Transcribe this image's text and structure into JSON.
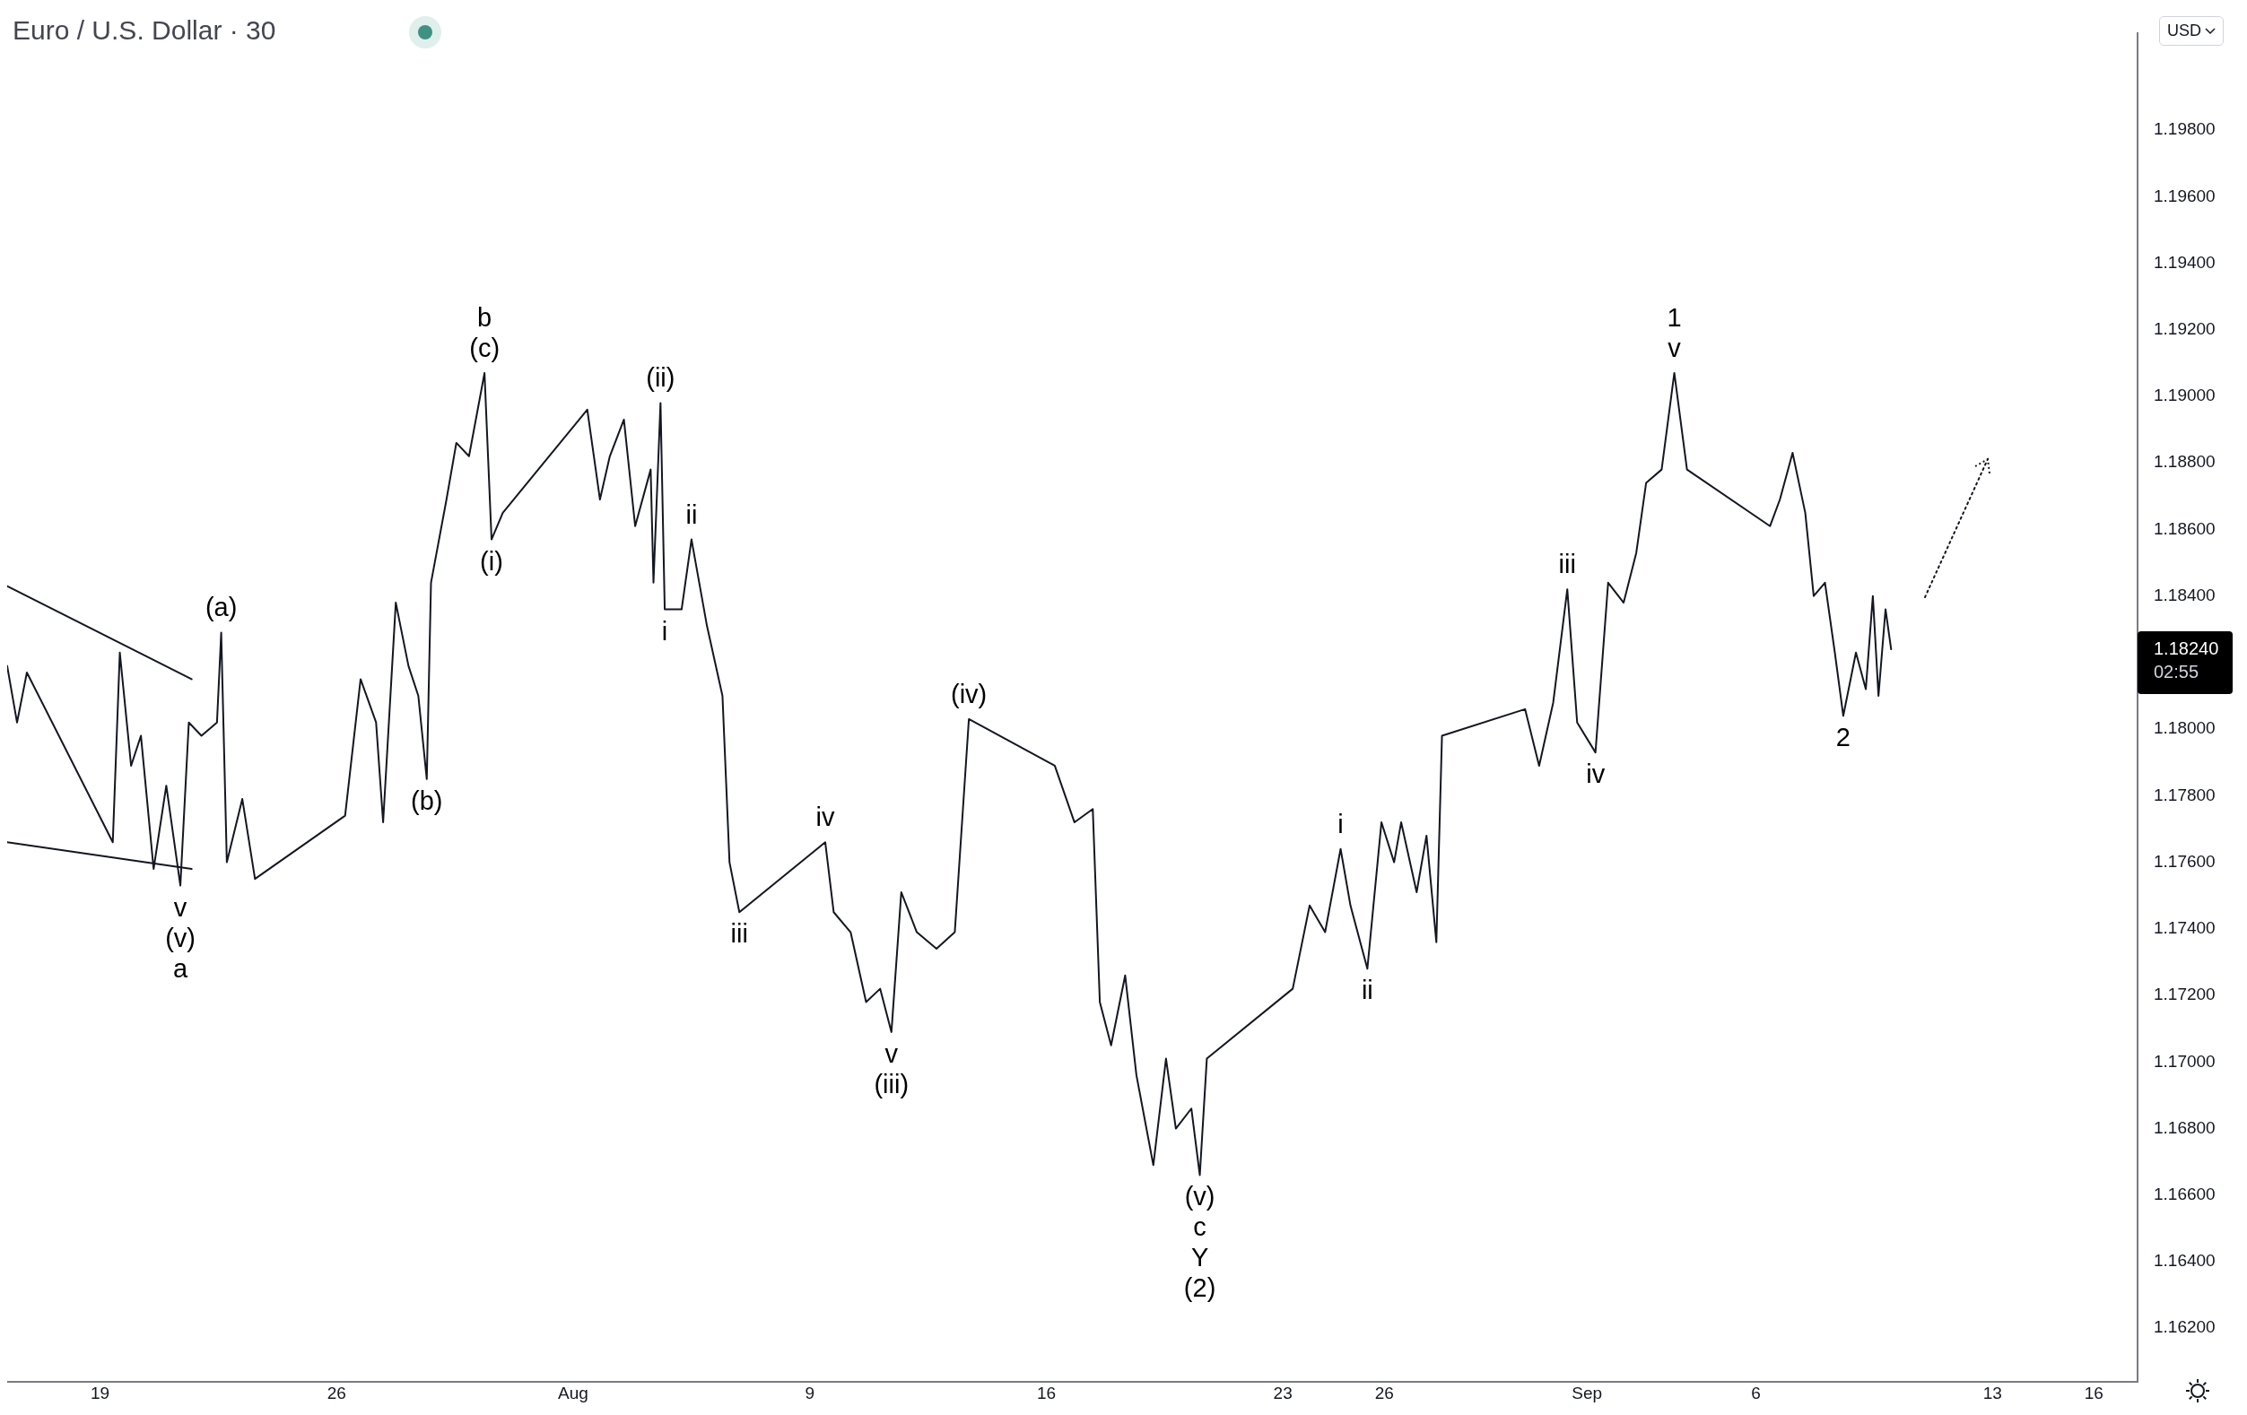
{
  "chart_data": {
    "type": "line",
    "title": "Euro / U.S. Dollar · 30",
    "ylabel": "USD",
    "xlim": [
      "--07-16T06:00",
      "--09-17T07:00"
    ],
    "xticks": [
      {
        "value": "--07-19",
        "label": "19"
      },
      {
        "value": "--07-26",
        "label": "26"
      },
      {
        "value": "--08-02",
        "label": "Aug"
      },
      {
        "value": "--08-09",
        "label": "9"
      },
      {
        "value": "--08-16",
        "label": "16"
      },
      {
        "value": "--08-23",
        "label": "23"
      },
      {
        "value": "--08-26",
        "label": "26"
      },
      {
        "value": "--09-01",
        "label": "Sep"
      },
      {
        "value": "--09-06",
        "label": "6"
      },
      {
        "value": "--09-13",
        "label": "13"
      },
      {
        "value": "--09-16",
        "label": "16"
      }
    ],
    "ylim": [
      1.1604,
      1.2009
    ],
    "yticks": [
      {
        "value": 1.162,
        "label": "1.16200"
      },
      {
        "value": 1.164,
        "label": "1.16400"
      },
      {
        "value": 1.166,
        "label": "1.16600"
      },
      {
        "value": 1.168,
        "label": "1.16800"
      },
      {
        "value": 1.17,
        "label": "1.17000"
      },
      {
        "value": 1.172,
        "label": "1.17200"
      },
      {
        "value": 1.174,
        "label": "1.17400"
      },
      {
        "value": 1.176,
        "label": "1.17600"
      },
      {
        "value": 1.178,
        "label": "1.17800"
      },
      {
        "value": 1.18,
        "label": "1.18000"
      },
      {
        "value": 1.184,
        "label": "1.18400"
      },
      {
        "value": 1.186,
        "label": "1.18600"
      },
      {
        "value": 1.188,
        "label": "1.18800"
      },
      {
        "value": 1.19,
        "label": "1.19000"
      },
      {
        "value": 1.192,
        "label": "1.19200"
      },
      {
        "value": 1.194,
        "label": "1.19400"
      },
      {
        "value": 1.196,
        "label": "1.19600"
      },
      {
        "value": 1.198,
        "label": "1.19800"
      }
    ],
    "grid": false,
    "legend": false,
    "marker": "none",
    "series": [
      {
        "color": "#131722",
        "x": [
          "--07-16T06:00",
          "--07-16T13:00",
          "--07-16T20:00",
          "--07-19T09:00",
          "--07-19T14:00",
          "--07-19T22:00",
          "--07-20T05:00",
          "--07-20T14:00",
          "--07-20T23:00",
          "--07-21T09:00",
          "--07-21T15:00",
          "--07-22T00:00",
          "--07-22T11:00",
          "--07-22T14:00",
          "--07-22T18:00",
          "--07-23T05:00",
          "--07-23T14:00",
          "--07-26T06:00",
          "--07-26T17:00",
          "--07-27T04:00",
          "--07-27T09:00",
          "--07-27T18:00",
          "--07-28T03:00",
          "--07-28T10:00",
          "--07-28T16:00",
          "--07-28T19:00",
          "--07-29T06:00",
          "--07-29T13:00",
          "--07-29T22:00",
          "--07-30T09:00",
          "--07-30T14:00",
          "--07-30T22:00",
          "--08-02T10:00",
          "--08-02T19:00",
          "--08-03T02:00",
          "--08-03T12:00",
          "--08-03T20:00",
          "--08-04T07:00",
          "--08-04T09:00",
          "--08-04T14:00",
          "--08-04T17:00",
          "--08-05T05:00",
          "--08-05T12:00",
          "--08-05T23:00",
          "--08-06T10:00",
          "--08-06T15:00",
          "--08-06T22:00",
          "--08-09T11:00",
          "--08-09T17:00",
          "--08-10T05:00",
          "--08-10T16:00",
          "--08-11T02:00",
          "--08-11T10:00",
          "--08-11T17:00",
          "--08-12T04:00",
          "--08-12T18:00",
          "--08-13T07:00",
          "--08-13T17:00",
          "--08-16T06:00",
          "--08-16T20:00",
          "--08-17T09:00",
          "--08-17T14:00",
          "--08-17T22:00",
          "--08-18T08:00",
          "--08-18T16:00",
          "--08-19T04:00",
          "--08-19T13:00",
          "--08-19T20:00",
          "--08-20T07:00",
          "--08-20T13:00",
          "--08-20T18:00",
          "--08-23T07:00",
          "--08-23T19:00",
          "--08-24T06:00",
          "--08-24T17:00",
          "--08-25T00:00",
          "--08-25T12:00",
          "--08-25T22:00",
          "--08-26T07:00",
          "--08-26T12:00",
          "--08-26T23:00",
          "--08-27T06:00",
          "--08-27T13:00",
          "--08-27T17:00",
          "--08-30T04:00",
          "--08-30T14:00",
          "--08-31T00:00",
          "--08-31T10:00",
          "--08-31T17:00",
          "--09-01T06:00",
          "--09-01T15:00",
          "--09-02T02:00",
          "--09-02T11:00",
          "--09-02T18:00",
          "--09-03T05:00",
          "--09-03T14:00",
          "--09-03T23:00",
          "--09-06T10:00",
          "--09-06T17:00",
          "--09-07T02:00",
          "--09-07T11:00",
          "--09-07T17:00",
          "--09-08T01:00",
          "--09-08T08:00",
          "--09-08T14:00",
          "--09-08T23:00",
          "--09-09T06:00",
          "--09-09T11:00",
          "--09-09T15:00",
          "--09-09T20:00",
          "--09-10T00:00"
        ],
        "values": [
          1.1819,
          1.1802,
          1.1817,
          1.1766,
          1.1823,
          1.1789,
          1.1798,
          1.1758,
          1.1783,
          1.1753,
          1.1802,
          1.1798,
          1.1802,
          1.1829,
          1.176,
          1.1779,
          1.1755,
          1.1774,
          1.1815,
          1.1802,
          1.1772,
          1.1838,
          1.1819,
          1.181,
          1.1785,
          1.1844,
          1.1869,
          1.1886,
          1.1882,
          1.1907,
          1.1857,
          1.1865,
          1.1896,
          1.1869,
          1.1882,
          1.1893,
          1.1861,
          1.1878,
          1.1844,
          1.1898,
          1.1836,
          1.1836,
          1.1857,
          1.1831,
          1.181,
          1.176,
          1.1745,
          1.1766,
          1.1745,
          1.1739,
          1.1718,
          1.1722,
          1.1709,
          1.1751,
          1.1739,
          1.1734,
          1.1739,
          1.1803,
          1.1789,
          1.1772,
          1.1776,
          1.1718,
          1.1705,
          1.1726,
          1.1696,
          1.1669,
          1.1701,
          1.168,
          1.1686,
          1.1666,
          1.1701,
          1.1722,
          1.1747,
          1.1739,
          1.1764,
          1.1747,
          1.1728,
          1.1772,
          1.176,
          1.1772,
          1.1751,
          1.1768,
          1.1736,
          1.1798,
          1.1806,
          1.1789,
          1.1808,
          1.1842,
          1.1802,
          1.1793,
          1.1844,
          1.1838,
          1.1853,
          1.1874,
          1.1878,
          1.1907,
          1.1878,
          1.1861,
          1.1869,
          1.1883,
          1.1865,
          1.184,
          1.1844,
          1.1823,
          1.1804,
          1.1823,
          1.1812,
          1.184,
          1.181,
          1.1836,
          1.1824
        ]
      },
      {
        "type": "line",
        "color": "#131722",
        "x": [
          "--07-16T06:00",
          "--07-21T17:00"
        ],
        "values": [
          1.1843,
          1.1815
        ]
      },
      {
        "type": "line",
        "color": "#131722",
        "x": [
          "--07-16T06:00",
          "--07-21T17:00"
        ],
        "values": [
          1.1766,
          1.1758
        ]
      }
    ],
    "annotations": [
      {
        "text": "(a)",
        "x": "--07-22T14:00",
        "y": 1.1829
      },
      {
        "text": "(b)",
        "x": "--07-28T16:00",
        "y": 1.1785
      },
      {
        "text": "b\n(c)",
        "x": "--07-30T09:00",
        "y": 1.1907
      },
      {
        "text": "(i)",
        "x": "--07-30T14:00",
        "y": 1.1857
      },
      {
        "text": "(ii)",
        "x": "--08-04T14:00",
        "y": 1.1898
      },
      {
        "text": "i",
        "x": "--08-04T17:00",
        "y": 1.1836
      },
      {
        "text": "ii",
        "x": "--08-05T12:00",
        "y": 1.1857
      },
      {
        "text": "iii",
        "x": "--08-06T22:00",
        "y": 1.1745
      },
      {
        "text": "iv",
        "x": "--08-09T11:00",
        "y": 1.1766
      },
      {
        "text": "v\n(iii)",
        "x": "--08-11T10:00",
        "y": 1.1709
      },
      {
        "text": "(iv)",
        "x": "--08-13T17:00",
        "y": 1.1803
      },
      {
        "text": "(v)\nc\nY\n(2)",
        "x": "--08-20T13:00",
        "y": 1.1666
      },
      {
        "text": "i",
        "x": "--08-24T17:00",
        "y": 1.1764
      },
      {
        "text": "ii",
        "x": "--08-25T12:00",
        "y": 1.1728
      },
      {
        "text": "iii",
        "x": "--08-31T10:00",
        "y": 1.1842
      },
      {
        "text": "iv",
        "x": "--09-01T06:00",
        "y": 1.1793
      },
      {
        "text": "1\nv",
        "x": "--09-03T14:00",
        "y": 1.1907
      },
      {
        "text": "2",
        "x": "--09-08T14:00",
        "y": 1.1804
      },
      {
        "text": "v\n(v)\na",
        "x": "--07-21T09:00",
        "y": 1.1753
      },
      "1.18240",
      "02:55"
    ]
  }
}
